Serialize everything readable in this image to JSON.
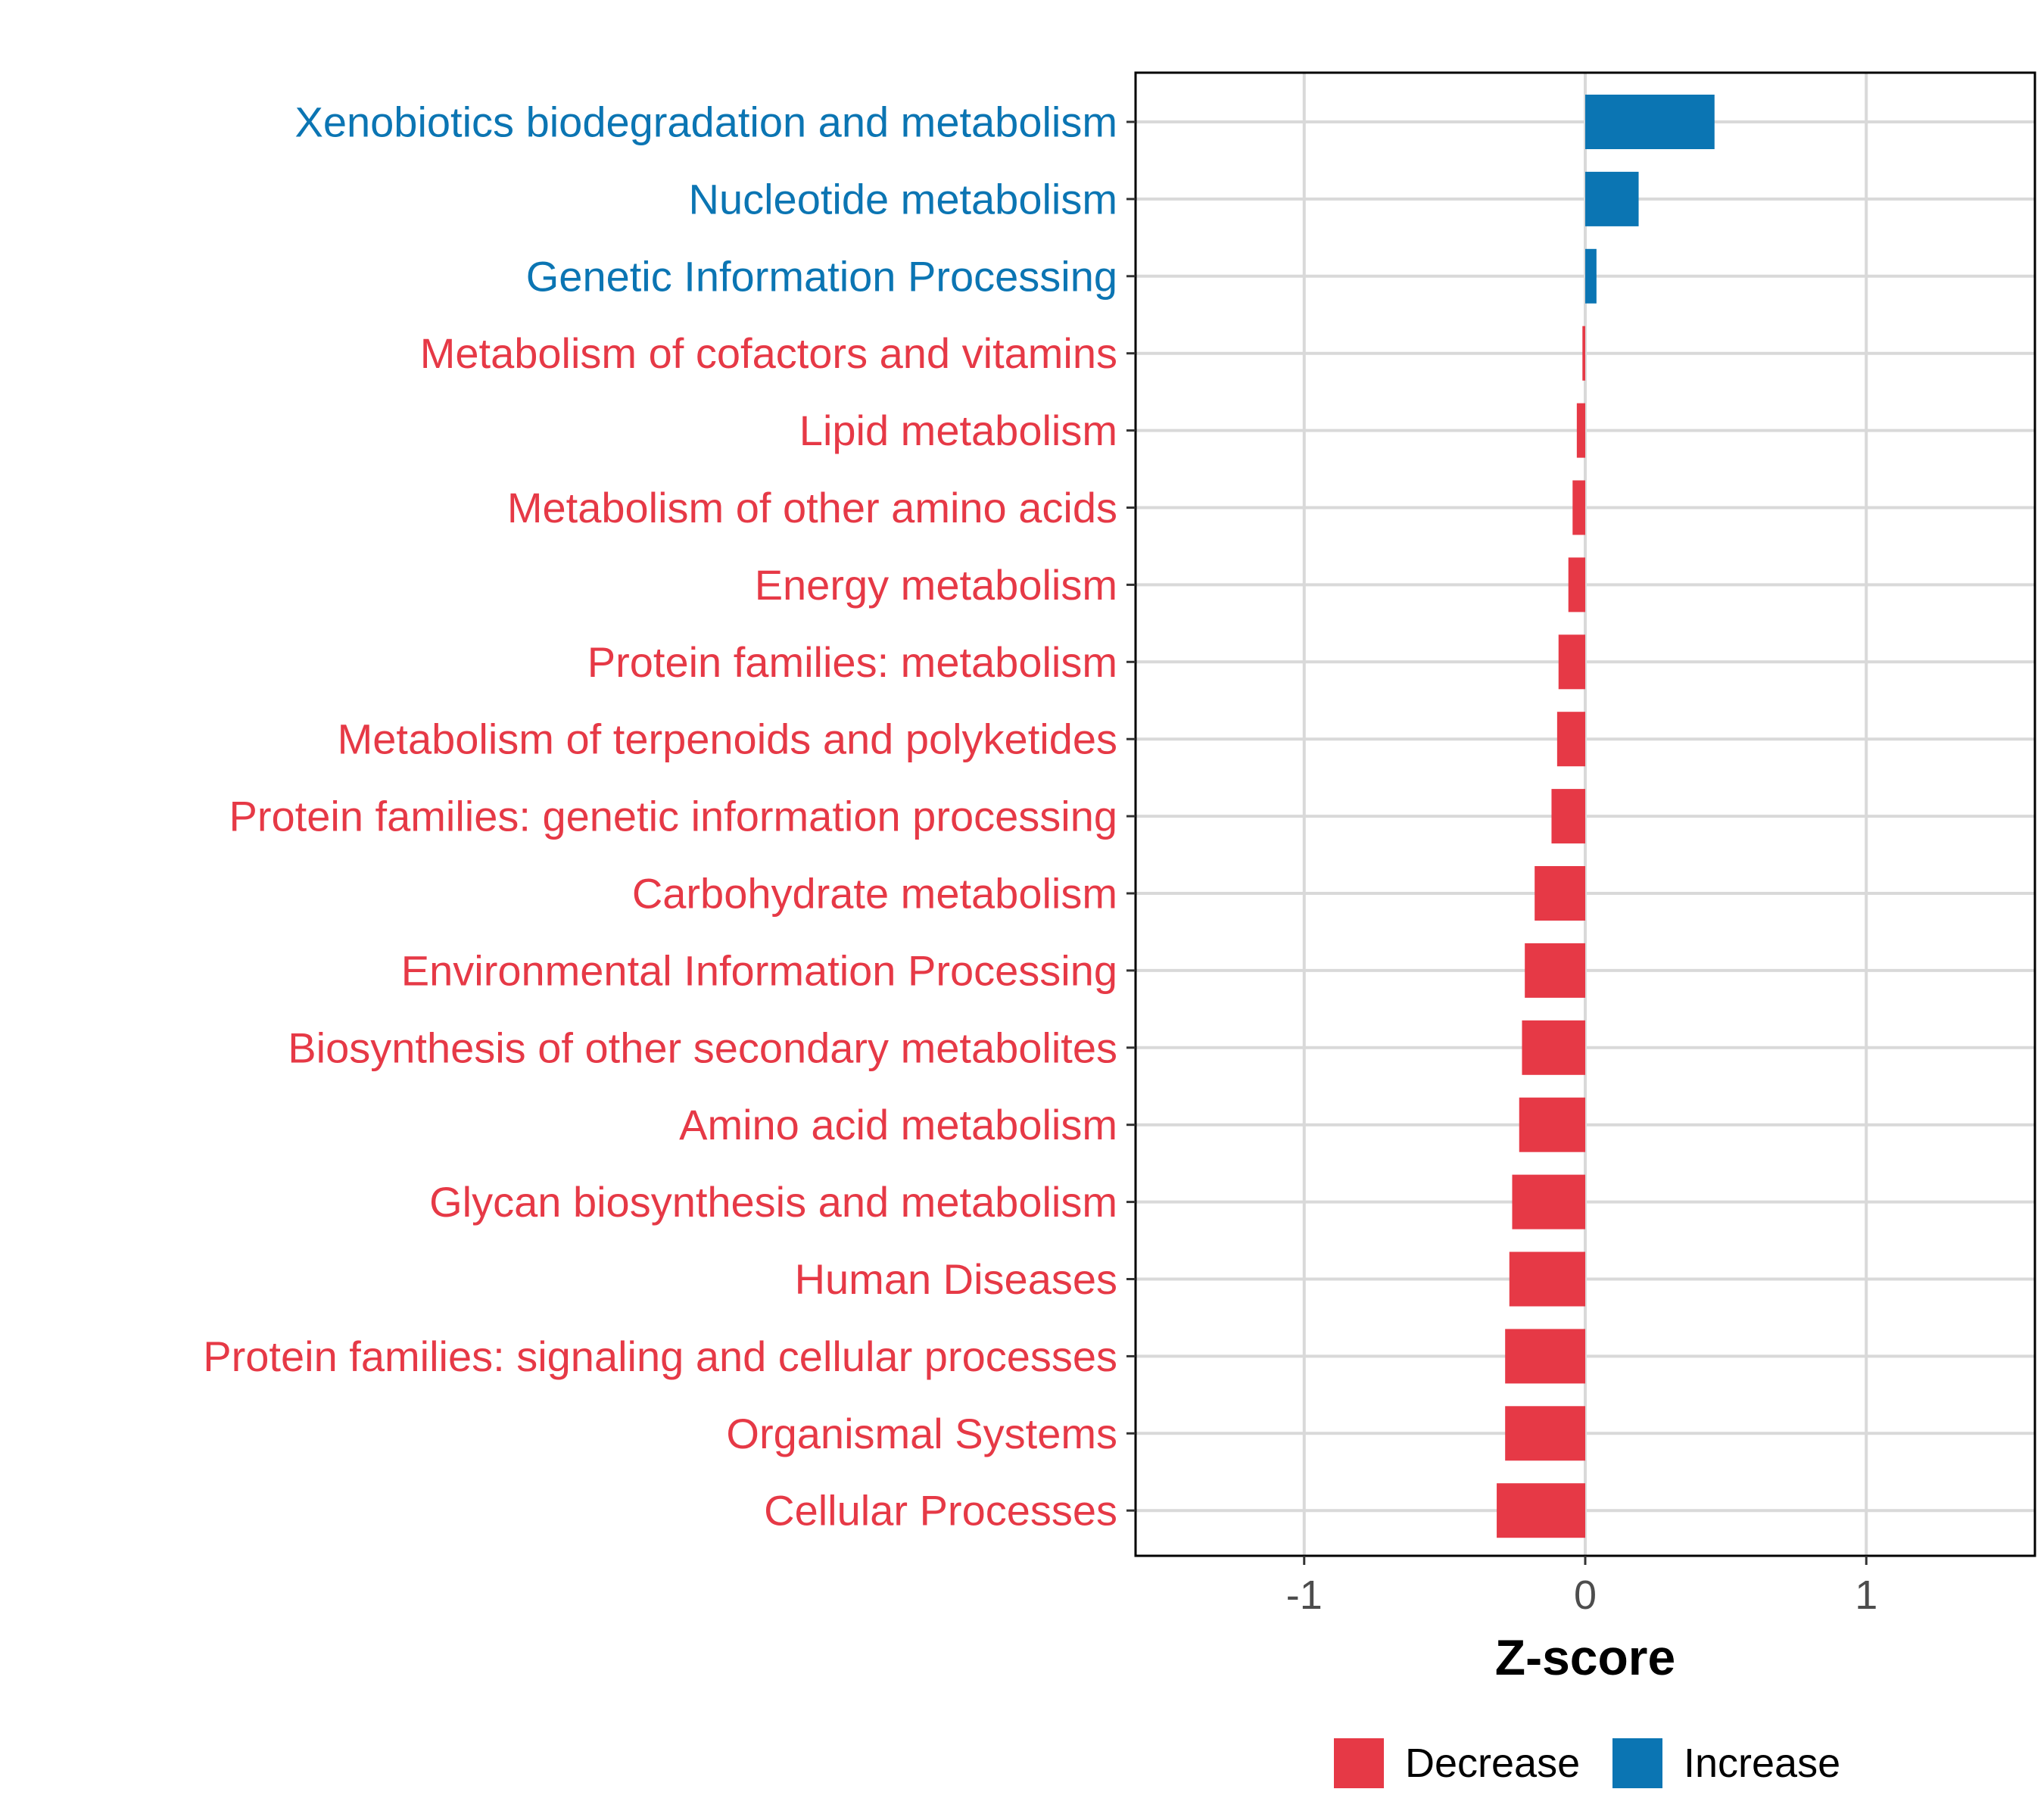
{
  "chart_data": {
    "type": "bar",
    "orientation": "horizontal",
    "xlabel": "Z-score",
    "xlim": [
      -1.6,
      1.6
    ],
    "xticks": [
      -1,
      0,
      1
    ],
    "xtick_labels": [
      "-1",
      "0",
      "1"
    ],
    "grid": true,
    "legend_position": "bottom",
    "legend": [
      {
        "label": "Decrease",
        "color": "#e63946"
      },
      {
        "label": "Increase",
        "color": "#0b75b3"
      }
    ],
    "categories": [
      "Xenobiotics biodegradation and metabolism",
      "Nucleotide metabolism",
      "Genetic Information Processing",
      "Metabolism of cofactors and vitamins",
      "Lipid metabolism",
      "Metabolism of other amino acids",
      "Energy metabolism",
      "Protein families: metabolism",
      "Metabolism of terpenoids and polyketides",
      "Protein families: genetic information processing",
      "Carbohydrate metabolism",
      "Environmental Information Processing",
      "Biosynthesis of other secondary metabolites",
      "Amino acid metabolism",
      "Glycan biosynthesis and metabolism",
      "Human Diseases",
      "Protein families: signaling and cellular processes",
      "Organismal Systems",
      "Cellular Processes"
    ],
    "values": [
      0.46,
      0.19,
      0.04,
      -0.01,
      -0.03,
      -0.045,
      -0.06,
      -0.095,
      -0.1,
      -0.12,
      -0.18,
      -0.215,
      -0.225,
      -0.235,
      -0.26,
      -0.27,
      -0.285,
      -0.285,
      -0.315
    ]
  }
}
